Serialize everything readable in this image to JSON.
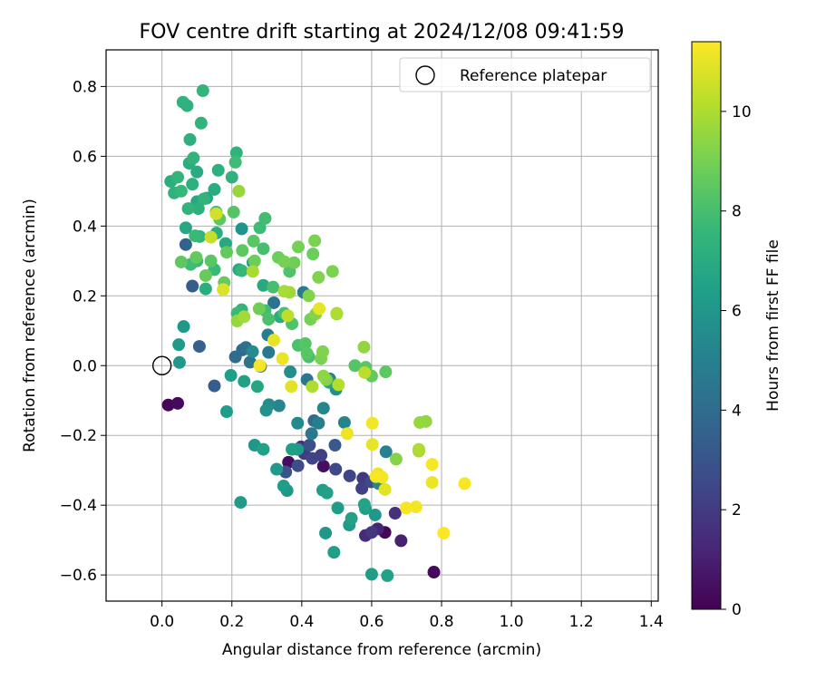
{
  "chart_data": {
    "type": "scatter",
    "title": "FOV centre drift starting at 2024/12/08 09:41:59",
    "xlabel": "Angular distance from reference (arcmin)",
    "ylabel": "Rotation from reference (arcmin)",
    "xlim": [
      -0.16,
      1.42
    ],
    "ylim": [
      -0.675,
      0.905
    ],
    "xticks": [
      "0.0",
      "0.2",
      "0.4",
      "0.6",
      "0.8",
      "1.0",
      "1.2",
      "1.4"
    ],
    "yticks": [
      "−0.6",
      "−0.4",
      "−0.2",
      "0.0",
      "0.2",
      "0.4",
      "0.6",
      "0.8"
    ],
    "grid": true,
    "legend": {
      "placement": "top-right",
      "entries": [
        {
          "label": "Reference platepar",
          "marker": "open-circle"
        }
      ]
    },
    "reference_point": {
      "x": 0.0,
      "y": 0.0
    },
    "colorbar": {
      "label": "Hours from first FF file",
      "colormap": "viridis",
      "range": [
        0,
        11.4
      ],
      "ticks": [
        "0",
        "2",
        "4",
        "6",
        "8",
        "10"
      ],
      "stops": [
        "#440154",
        "#482878",
        "#3e4989",
        "#31688e",
        "#26828e",
        "#1f9e89",
        "#35b779",
        "#6ece58",
        "#b5de2b",
        "#fde725"
      ]
    },
    "points": [
      {
        "x": 0.018,
        "y": -0.113,
        "h": 0.1
      },
      {
        "x": 0.045,
        "y": -0.108,
        "h": 0.3
      },
      {
        "x": 0.362,
        "y": -0.277,
        "h": 0.4
      },
      {
        "x": 0.462,
        "y": -0.288,
        "h": 0.5
      },
      {
        "x": 0.638,
        "y": -0.478,
        "h": 0.2
      },
      {
        "x": 0.778,
        "y": -0.592,
        "h": 0.3
      },
      {
        "x": 0.684,
        "y": -0.502,
        "h": 1.0
      },
      {
        "x": 0.667,
        "y": -0.423,
        "h": 1.6
      },
      {
        "x": 0.617,
        "y": -0.468,
        "h": 1.2
      },
      {
        "x": 0.582,
        "y": -0.487,
        "h": 1.4
      },
      {
        "x": 0.6,
        "y": -0.478,
        "h": 1.8
      },
      {
        "x": 0.575,
        "y": -0.323,
        "h": 1.9
      },
      {
        "x": 0.572,
        "y": -0.352,
        "h": 2.2
      },
      {
        "x": 0.598,
        "y": -0.333,
        "h": 2.6
      },
      {
        "x": 0.537,
        "y": -0.316,
        "h": 2.4
      },
      {
        "x": 0.497,
        "y": -0.297,
        "h": 2.5
      },
      {
        "x": 0.495,
        "y": -0.228,
        "h": 3.2
      },
      {
        "x": 0.422,
        "y": -0.228,
        "h": 2.8
      },
      {
        "x": 0.407,
        "y": -0.252,
        "h": 2.0
      },
      {
        "x": 0.398,
        "y": -0.233,
        "h": 1.6
      },
      {
        "x": 0.43,
        "y": -0.266,
        "h": 2.3
      },
      {
        "x": 0.455,
        "y": -0.257,
        "h": 2.1
      },
      {
        "x": 0.389,
        "y": -0.287,
        "h": 2.7
      },
      {
        "x": 0.354,
        "y": -0.305,
        "h": 3.0
      },
      {
        "x": 0.15,
        "y": -0.058,
        "h": 3.4
      },
      {
        "x": 0.068,
        "y": 0.347,
        "h": 3.6
      },
      {
        "x": 0.087,
        "y": 0.228,
        "h": 3.3
      },
      {
        "x": 0.107,
        "y": 0.055,
        "h": 3.5
      },
      {
        "x": 0.21,
        "y": 0.025,
        "h": 4.0
      },
      {
        "x": 0.23,
        "y": 0.045,
        "h": 3.8
      },
      {
        "x": 0.24,
        "y": 0.052,
        "h": 4.2
      },
      {
        "x": 0.252,
        "y": 0.01,
        "h": 4.4
      },
      {
        "x": 0.282,
        "y": -0.002,
        "h": 4.1
      },
      {
        "x": 0.305,
        "y": 0.038,
        "h": 4.6
      },
      {
        "x": 0.303,
        "y": 0.088,
        "h": 4.8
      },
      {
        "x": 0.32,
        "y": 0.18,
        "h": 4.3
      },
      {
        "x": 0.405,
        "y": 0.21,
        "h": 4.7
      },
      {
        "x": 0.415,
        "y": -0.04,
        "h": 4.5
      },
      {
        "x": 0.435,
        "y": -0.158,
        "h": 4.0
      },
      {
        "x": 0.448,
        "y": -0.165,
        "h": 4.9
      },
      {
        "x": 0.48,
        "y": -0.038,
        "h": 5.1
      },
      {
        "x": 0.522,
        "y": -0.163,
        "h": 5.2
      },
      {
        "x": 0.641,
        "y": -0.247,
        "h": 5.0
      },
      {
        "x": 0.62,
        "y": -0.338,
        "h": 5.3
      },
      {
        "x": 0.428,
        "y": -0.195,
        "h": 4.6
      },
      {
        "x": 0.388,
        "y": -0.165,
        "h": 5.4
      },
      {
        "x": 0.306,
        "y": -0.112,
        "h": 5.5
      },
      {
        "x": 0.367,
        "y": -0.018,
        "h": 5.6
      },
      {
        "x": 0.335,
        "y": -0.115,
        "h": 5.2
      },
      {
        "x": 0.462,
        "y": -0.122,
        "h": 5.3
      },
      {
        "x": 0.498,
        "y": -0.068,
        "h": 5.7
      },
      {
        "x": 0.298,
        "y": -0.128,
        "h": 5.8
      },
      {
        "x": 0.228,
        "y": 0.392,
        "h": 5.9
      },
      {
        "x": 0.259,
        "y": 0.04,
        "h": 5.5
      },
      {
        "x": 0.062,
        "y": 0.112,
        "h": 6.0
      },
      {
        "x": 0.048,
        "y": 0.06,
        "h": 6.2
      },
      {
        "x": 0.05,
        "y": 0.009,
        "h": 6.1
      },
      {
        "x": 0.185,
        "y": -0.132,
        "h": 6.3
      },
      {
        "x": 0.197,
        "y": -0.028,
        "h": 6.4
      },
      {
        "x": 0.225,
        "y": -0.392,
        "h": 6.2
      },
      {
        "x": 0.265,
        "y": -0.228,
        "h": 6.0
      },
      {
        "x": 0.29,
        "y": -0.24,
        "h": 6.5
      },
      {
        "x": 0.328,
        "y": -0.297,
        "h": 6.1
      },
      {
        "x": 0.348,
        "y": -0.345,
        "h": 6.3
      },
      {
        "x": 0.358,
        "y": -0.358,
        "h": 6.0
      },
      {
        "x": 0.372,
        "y": -0.24,
        "h": 6.4
      },
      {
        "x": 0.388,
        "y": -0.24,
        "h": 6.2
      },
      {
        "x": 0.46,
        "y": -0.357,
        "h": 6.3
      },
      {
        "x": 0.468,
        "y": -0.48,
        "h": 6.0
      },
      {
        "x": 0.472,
        "y": -0.365,
        "h": 6.5
      },
      {
        "x": 0.492,
        "y": -0.535,
        "h": 6.4
      },
      {
        "x": 0.503,
        "y": -0.408,
        "h": 6.3
      },
      {
        "x": 0.536,
        "y": -0.457,
        "h": 6.2
      },
      {
        "x": 0.542,
        "y": -0.438,
        "h": 6.5
      },
      {
        "x": 0.579,
        "y": -0.398,
        "h": 6.6
      },
      {
        "x": 0.582,
        "y": -0.41,
        "h": 6.4
      },
      {
        "x": 0.61,
        "y": -0.428,
        "h": 6.1
      },
      {
        "x": 0.6,
        "y": -0.598,
        "h": 6.3
      },
      {
        "x": 0.645,
        "y": -0.602,
        "h": 6.5
      },
      {
        "x": 0.273,
        "y": -0.06,
        "h": 6.7
      },
      {
        "x": 0.235,
        "y": -0.045,
        "h": 6.5
      },
      {
        "x": 0.478,
        "y": -0.048,
        "h": 6.6
      },
      {
        "x": 0.22,
        "y": 0.275,
        "h": 6.8
      },
      {
        "x": 0.26,
        "y": 0.295,
        "h": 6.6
      },
      {
        "x": 0.29,
        "y": 0.23,
        "h": 6.9
      },
      {
        "x": 0.338,
        "y": 0.14,
        "h": 7.0
      },
      {
        "x": 0.125,
        "y": 0.22,
        "h": 7.1
      },
      {
        "x": 0.128,
        "y": 0.48,
        "h": 6.7
      },
      {
        "x": 0.15,
        "y": 0.505,
        "h": 7.0
      },
      {
        "x": 0.161,
        "y": 0.56,
        "h": 7.2
      },
      {
        "x": 0.182,
        "y": 0.35,
        "h": 6.8
      },
      {
        "x": 0.2,
        "y": 0.54,
        "h": 7.3
      },
      {
        "x": 0.213,
        "y": 0.61,
        "h": 7.4
      },
      {
        "x": 0.156,
        "y": 0.38,
        "h": 7.1
      },
      {
        "x": 0.1,
        "y": 0.47,
        "h": 6.9
      },
      {
        "x": 0.104,
        "y": 0.45,
        "h": 7.2
      },
      {
        "x": 0.068,
        "y": 0.395,
        "h": 6.8
      },
      {
        "x": 0.072,
        "y": 0.745,
        "h": 7.3
      },
      {
        "x": 0.08,
        "y": 0.648,
        "h": 7.2
      },
      {
        "x": 0.112,
        "y": 0.695,
        "h": 7.4
      },
      {
        "x": 0.117,
        "y": 0.788,
        "h": 7.5
      },
      {
        "x": 0.06,
        "y": 0.755,
        "h": 7.3
      },
      {
        "x": 0.078,
        "y": 0.58,
        "h": 7.1
      },
      {
        "x": 0.09,
        "y": 0.595,
        "h": 7.4
      },
      {
        "x": 0.1,
        "y": 0.555,
        "h": 7.0
      },
      {
        "x": 0.087,
        "y": 0.52,
        "h": 7.2
      },
      {
        "x": 0.045,
        "y": 0.54,
        "h": 7.5
      },
      {
        "x": 0.035,
        "y": 0.495,
        "h": 7.3
      },
      {
        "x": 0.025,
        "y": 0.528,
        "h": 7.1
      },
      {
        "x": 0.055,
        "y": 0.5,
        "h": 7.6
      },
      {
        "x": 0.075,
        "y": 0.45,
        "h": 7.4
      },
      {
        "x": 0.095,
        "y": 0.372,
        "h": 7.7
      },
      {
        "x": 0.108,
        "y": 0.37,
        "h": 7.5
      },
      {
        "x": 0.082,
        "y": 0.29,
        "h": 7.8
      },
      {
        "x": 0.1,
        "y": 0.3,
        "h": 7.6
      },
      {
        "x": 0.12,
        "y": 0.478,
        "h": 7.4
      },
      {
        "x": 0.15,
        "y": 0.275,
        "h": 7.7
      },
      {
        "x": 0.155,
        "y": 0.44,
        "h": 7.9
      },
      {
        "x": 0.228,
        "y": 0.272,
        "h": 7.6
      },
      {
        "x": 0.21,
        "y": 0.583,
        "h": 7.8
      },
      {
        "x": 0.215,
        "y": 0.15,
        "h": 7.7
      },
      {
        "x": 0.228,
        "y": 0.16,
        "h": 7.5
      },
      {
        "x": 0.295,
        "y": 0.422,
        "h": 7.9
      },
      {
        "x": 0.29,
        "y": 0.335,
        "h": 8.0
      },
      {
        "x": 0.28,
        "y": 0.395,
        "h": 7.8
      },
      {
        "x": 0.295,
        "y": 0.158,
        "h": 7.9
      },
      {
        "x": 0.305,
        "y": 0.133,
        "h": 8.1
      },
      {
        "x": 0.318,
        "y": 0.225,
        "h": 8.0
      },
      {
        "x": 0.365,
        "y": 0.27,
        "h": 8.2
      },
      {
        "x": 0.39,
        "y": 0.058,
        "h": 8.1
      },
      {
        "x": 0.41,
        "y": 0.063,
        "h": 8.3
      },
      {
        "x": 0.35,
        "y": 0.15,
        "h": 8.0
      },
      {
        "x": 0.372,
        "y": 0.12,
        "h": 8.2
      },
      {
        "x": 0.415,
        "y": 0.035,
        "h": 8.4
      },
      {
        "x": 0.42,
        "y": 0.025,
        "h": 8.1
      },
      {
        "x": 0.552,
        "y": 0.0,
        "h": 8.3
      },
      {
        "x": 0.64,
        "y": -0.018,
        "h": 8.5
      },
      {
        "x": 0.6,
        "y": -0.03,
        "h": 8.6
      },
      {
        "x": 0.583,
        "y": -0.005,
        "h": 8.4
      },
      {
        "x": 0.23,
        "y": 0.33,
        "h": 8.5
      },
      {
        "x": 0.262,
        "y": 0.357,
        "h": 8.4
      },
      {
        "x": 0.185,
        "y": 0.325,
        "h": 8.6
      },
      {
        "x": 0.165,
        "y": 0.42,
        "h": 8.5
      },
      {
        "x": 0.205,
        "y": 0.44,
        "h": 8.3
      },
      {
        "x": 0.14,
        "y": 0.3,
        "h": 8.4
      },
      {
        "x": 0.125,
        "y": 0.258,
        "h": 8.7
      },
      {
        "x": 0.055,
        "y": 0.297,
        "h": 8.5
      },
      {
        "x": 0.098,
        "y": 0.31,
        "h": 8.6
      },
      {
        "x": 0.178,
        "y": 0.238,
        "h": 8.7
      },
      {
        "x": 0.265,
        "y": 0.3,
        "h": 8.8
      },
      {
        "x": 0.278,
        "y": 0.163,
        "h": 8.9
      },
      {
        "x": 0.333,
        "y": 0.31,
        "h": 8.8
      },
      {
        "x": 0.35,
        "y": 0.298,
        "h": 9.0
      },
      {
        "x": 0.378,
        "y": 0.295,
        "h": 8.9
      },
      {
        "x": 0.39,
        "y": 0.34,
        "h": 9.0
      },
      {
        "x": 0.437,
        "y": 0.358,
        "h": 9.1
      },
      {
        "x": 0.432,
        "y": 0.32,
        "h": 8.8
      },
      {
        "x": 0.448,
        "y": 0.253,
        "h": 9.2
      },
      {
        "x": 0.488,
        "y": 0.27,
        "h": 9.1
      },
      {
        "x": 0.42,
        "y": 0.2,
        "h": 9.2
      },
      {
        "x": 0.425,
        "y": 0.133,
        "h": 9.0
      },
      {
        "x": 0.44,
        "y": 0.148,
        "h": 9.3
      },
      {
        "x": 0.46,
        "y": 0.04,
        "h": 9.2
      },
      {
        "x": 0.455,
        "y": 0.02,
        "h": 9.1
      },
      {
        "x": 0.462,
        "y": -0.03,
        "h": 9.4
      },
      {
        "x": 0.47,
        "y": -0.04,
        "h": 9.3
      },
      {
        "x": 0.5,
        "y": 0.148,
        "h": 9.4
      },
      {
        "x": 0.578,
        "y": 0.053,
        "h": 9.5
      },
      {
        "x": 0.738,
        "y": -0.163,
        "h": 9.6
      },
      {
        "x": 0.755,
        "y": -0.16,
        "h": 9.5
      },
      {
        "x": 0.735,
        "y": -0.245,
        "h": 9.8
      },
      {
        "x": 0.735,
        "y": -0.24,
        "h": 10.0
      },
      {
        "x": 0.67,
        "y": -0.268,
        "h": 9.3
      },
      {
        "x": 0.365,
        "y": 0.21,
        "h": 9.7
      },
      {
        "x": 0.22,
        "y": 0.5,
        "h": 9.6
      },
      {
        "x": 0.26,
        "y": 0.27,
        "h": 9.9
      },
      {
        "x": 0.235,
        "y": 0.14,
        "h": 9.8
      },
      {
        "x": 0.215,
        "y": 0.128,
        "h": 9.6
      },
      {
        "x": 0.35,
        "y": 0.213,
        "h": 9.9
      },
      {
        "x": 0.5,
        "y": 0.15,
        "h": 10.0
      },
      {
        "x": 0.505,
        "y": -0.055,
        "h": 10.1
      },
      {
        "x": 0.43,
        "y": -0.06,
        "h": 10.0
      },
      {
        "x": 0.58,
        "y": -0.02,
        "h": 10.2
      },
      {
        "x": 0.36,
        "y": 0.143,
        "h": 10.3
      },
      {
        "x": 0.14,
        "y": 0.368,
        "h": 10.4
      },
      {
        "x": 0.155,
        "y": 0.435,
        "h": 10.6
      },
      {
        "x": 0.175,
        "y": 0.218,
        "h": 10.8
      },
      {
        "x": 0.32,
        "y": 0.073,
        "h": 11.0
      },
      {
        "x": 0.345,
        "y": 0.02,
        "h": 11.1
      },
      {
        "x": 0.37,
        "y": -0.06,
        "h": 10.9
      },
      {
        "x": 0.45,
        "y": 0.163,
        "h": 11.0
      },
      {
        "x": 0.28,
        "y": 0.0,
        "h": 11.2
      },
      {
        "x": 0.53,
        "y": -0.195,
        "h": 11.1
      },
      {
        "x": 0.602,
        "y": -0.165,
        "h": 11.2
      },
      {
        "x": 0.602,
        "y": -0.226,
        "h": 11.0
      },
      {
        "x": 0.612,
        "y": -0.318,
        "h": 11.3
      },
      {
        "x": 0.618,
        "y": -0.31,
        "h": 11.1
      },
      {
        "x": 0.63,
        "y": -0.32,
        "h": 11.2
      },
      {
        "x": 0.638,
        "y": -0.355,
        "h": 10.9
      },
      {
        "x": 0.699,
        "y": -0.408,
        "h": 11.3
      },
      {
        "x": 0.727,
        "y": -0.405,
        "h": 11.2
      },
      {
        "x": 0.773,
        "y": -0.283,
        "h": 11.3
      },
      {
        "x": 0.773,
        "y": -0.335,
        "h": 11.1
      },
      {
        "x": 0.806,
        "y": -0.48,
        "h": 11.4
      },
      {
        "x": 0.866,
        "y": -0.338,
        "h": 11.3
      }
    ]
  }
}
